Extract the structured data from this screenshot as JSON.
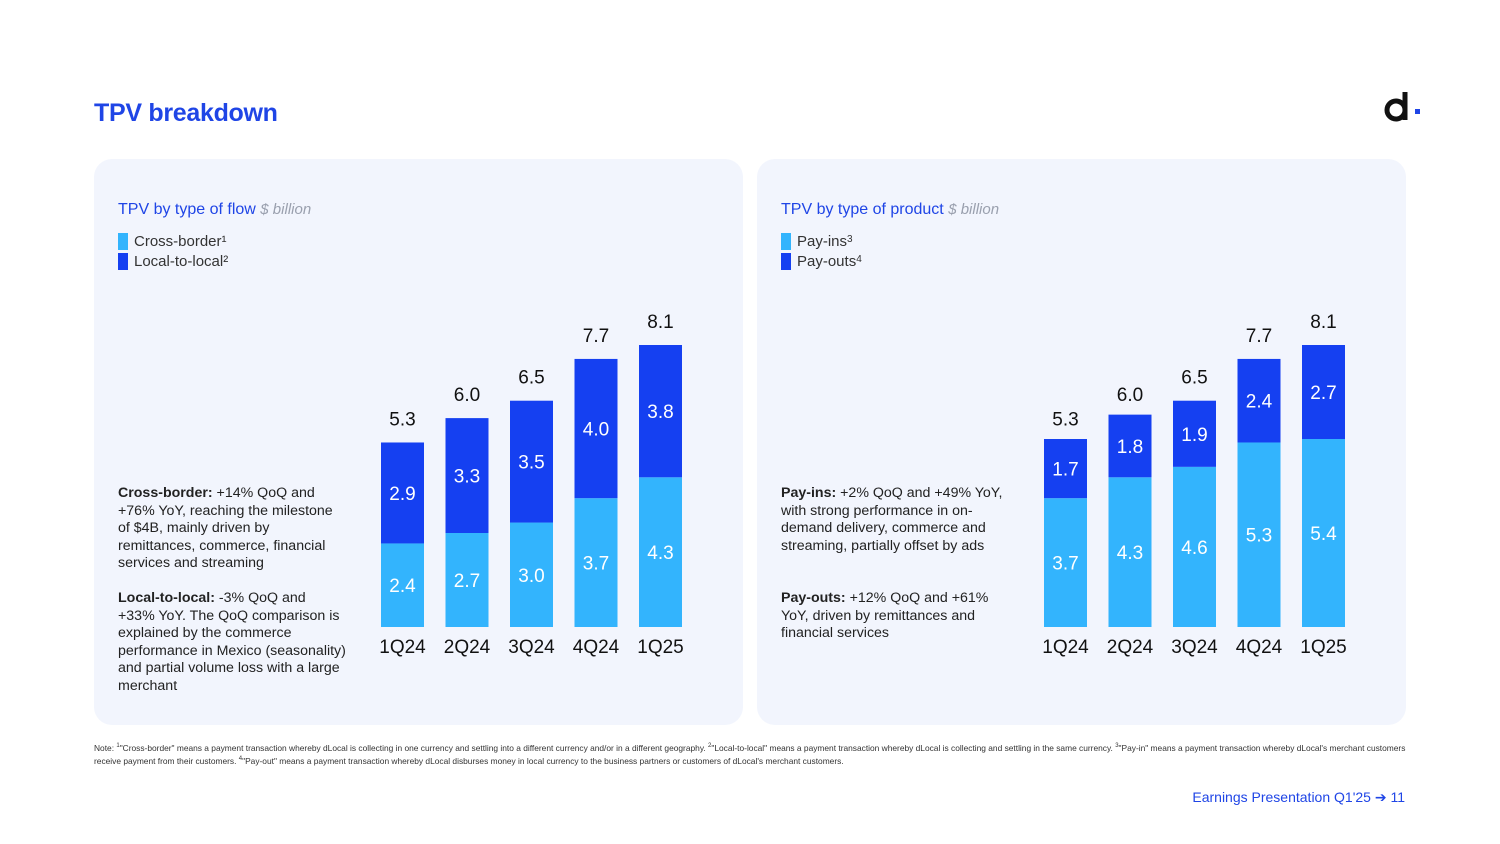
{
  "page": {
    "title": "TPV breakdown",
    "logo_icon": "dlocal-d-logo-icon",
    "footer_text": "Earnings Presentation Q1'25",
    "footer_arrow": "➔",
    "page_number": "11"
  },
  "colors": {
    "accent": "#1f45e6",
    "light_series": "#33b4fd",
    "dark_series": "#1540f1",
    "panel_bg": "#f2f5fd"
  },
  "left": {
    "title": "TPV by type of flow",
    "unit": "$ billion",
    "legend": [
      {
        "label": "Cross-border",
        "sup": "¹"
      },
      {
        "label": "Local-to-local",
        "sup": "²"
      }
    ],
    "desc1_head": "Cross-border:",
    "desc1_body": " +14% QoQ and +76% YoY, reaching the milestone of $4B, mainly driven by remittances, commerce, financial services and streaming",
    "desc2_head": "Local-to-local:",
    "desc2_body": " -3% QoQ and +33% YoY. The QoQ comparison is explained by the commerce performance in Mexico (seasonality) and partial volume loss with a large merchant"
  },
  "right": {
    "title": "TPV by type of product",
    "unit": "$ billion",
    "legend": [
      {
        "label": "Pay-ins",
        "sup": "3"
      },
      {
        "label": "Pay-outs",
        "sup": "4"
      }
    ],
    "desc1_head": "Pay-ins:",
    "desc1_body": " +2% QoQ and +49% YoY, with strong performance in on-demand delivery, commerce and streaming, partially offset by ads",
    "desc2_head": "Pay-outs:",
    "desc2_body": " +12% QoQ and +61% YoY, driven by remittances and financial services"
  },
  "note": {
    "prefix": "Note: ",
    "s1": "1",
    "t1": "\"Cross-border\" means a payment transaction whereby dLocal is collecting in one currency and settling into a different currency and/or in a different geography. ",
    "s2": "2",
    "t2": "\"Local-to-local\" means a payment transaction whereby dLocal is collecting and settling in the same currency. ",
    "s3": "3",
    "t3": "\"Pay-in\" means a payment transaction whereby dLocal's merchant customers receive payment from their customers. ",
    "s4": "4",
    "t4": "\"Pay-out\" means a payment transaction whereby dLocal disburses money in local currency to the business partners or customers of dLocal's merchant customers."
  },
  "chart_data": [
    {
      "type": "bar",
      "stacked": true,
      "title": "TPV by type of flow",
      "unit": "$ billion",
      "categories": [
        "1Q24",
        "2Q24",
        "3Q24",
        "4Q24",
        "1Q25"
      ],
      "series": [
        {
          "name": "Cross-border",
          "values": [
            2.4,
            2.7,
            3.0,
            3.7,
            4.3
          ],
          "labels": [
            "2.4",
            "2.7",
            "3.0",
            "3.7",
            "4.3"
          ],
          "color": "#33b4fd"
        },
        {
          "name": "Local-to-local",
          "values": [
            2.9,
            3.3,
            3.5,
            4.0,
            3.8
          ],
          "labels": [
            "2.9",
            "3.3",
            "3.5",
            "4.0",
            "3.8"
          ],
          "color": "#1540f1"
        }
      ],
      "totals": [
        5.3,
        6.0,
        6.5,
        7.7,
        8.1
      ],
      "total_labels": [
        "5.3",
        "6.0",
        "6.5",
        "7.7",
        "8.1"
      ],
      "ylim": [
        0,
        8.1
      ]
    },
    {
      "type": "bar",
      "stacked": true,
      "title": "TPV by type of product",
      "unit": "$ billion",
      "categories": [
        "1Q24",
        "2Q24",
        "3Q24",
        "4Q24",
        "1Q25"
      ],
      "series": [
        {
          "name": "Pay-ins",
          "values": [
            3.7,
            4.3,
            4.6,
            5.3,
            5.4
          ],
          "labels": [
            "3.7",
            "4.3",
            "4.6",
            "5.3",
            "5.4"
          ],
          "color": "#33b4fd"
        },
        {
          "name": "Pay-outs",
          "values": [
            1.7,
            1.8,
            1.9,
            2.4,
            2.7
          ],
          "labels": [
            "1.7",
            "1.8",
            "1.9",
            "2.4",
            "2.7"
          ],
          "color": "#1540f1"
        }
      ],
      "totals": [
        5.3,
        6.0,
        6.5,
        7.7,
        8.1
      ],
      "total_labels": [
        "5.3",
        "6.0",
        "6.5",
        "7.7",
        "8.1"
      ],
      "ylim": [
        0,
        8.1
      ]
    }
  ]
}
